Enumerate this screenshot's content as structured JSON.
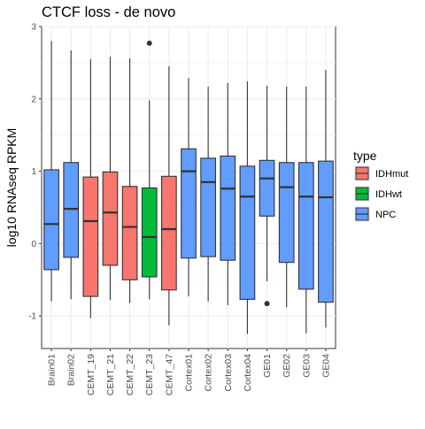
{
  "chart_data": {
    "type": "boxplot",
    "title": "CTCF loss - de novo",
    "xlabel": "",
    "ylabel": "log10 RNAseq RPKM",
    "ylim": [
      -1.45,
      3.0
    ],
    "yticks": [
      -1,
      0,
      1,
      2,
      3
    ],
    "grid": true,
    "legend": {
      "title": "type",
      "position": "right",
      "entries": [
        {
          "name": "IDHmut",
          "color": "#F8766D"
        },
        {
          "name": "IDHwt",
          "color": "#00BA38"
        },
        {
          "name": "NPC",
          "color": "#619CFF"
        }
      ]
    },
    "categories": [
      "Brain01",
      "Brain02",
      "CEMT_19",
      "CEMT_21",
      "CEMT_22",
      "CEMT_23",
      "CEMT_47",
      "Cortex01",
      "Cortex02",
      "Cortex03",
      "Cortex04",
      "GE01",
      "GE02",
      "GE03",
      "GE04"
    ],
    "boxes": [
      {
        "category": "Brain01",
        "type": "NPC",
        "whisker_low": -0.8,
        "q1": -0.36,
        "median": 0.27,
        "q3": 1.02,
        "whisker_high": 2.8,
        "outliers": []
      },
      {
        "category": "Brain02",
        "type": "NPC",
        "whisker_low": -0.77,
        "q1": -0.19,
        "median": 0.48,
        "q3": 1.12,
        "whisker_high": 2.67,
        "outliers": []
      },
      {
        "category": "CEMT_19",
        "type": "IDHmut",
        "whisker_low": -1.03,
        "q1": -0.73,
        "median": 0.31,
        "q3": 0.92,
        "whisker_high": 2.55,
        "outliers": []
      },
      {
        "category": "CEMT_21",
        "type": "IDHmut",
        "whisker_low": -0.78,
        "q1": -0.3,
        "median": 0.43,
        "q3": 0.99,
        "whisker_high": 2.58,
        "outliers": []
      },
      {
        "category": "CEMT_22",
        "type": "IDHmut",
        "whisker_low": -0.82,
        "q1": -0.5,
        "median": 0.23,
        "q3": 0.79,
        "whisker_high": 2.56,
        "outliers": []
      },
      {
        "category": "CEMT_23",
        "type": "IDHwt",
        "whisker_low": -0.77,
        "q1": -0.46,
        "median": 0.09,
        "q3": 0.77,
        "whisker_high": 1.98,
        "outliers": [
          2.77
        ]
      },
      {
        "category": "CEMT_47",
        "type": "IDHmut",
        "whisker_low": -1.13,
        "q1": -0.64,
        "median": 0.2,
        "q3": 0.93,
        "whisker_high": 2.45,
        "outliers": []
      },
      {
        "category": "Cortex01",
        "type": "NPC",
        "whisker_low": -0.73,
        "q1": -0.2,
        "median": 1.0,
        "q3": 1.31,
        "whisker_high": 2.29,
        "outliers": []
      },
      {
        "category": "Cortex02",
        "type": "NPC",
        "whisker_low": -0.8,
        "q1": -0.18,
        "median": 0.85,
        "q3": 1.18,
        "whisker_high": 2.17,
        "outliers": []
      },
      {
        "category": "Cortex03",
        "type": "NPC",
        "whisker_low": -0.85,
        "q1": -0.23,
        "median": 0.76,
        "q3": 1.21,
        "whisker_high": 2.22,
        "outliers": []
      },
      {
        "category": "Cortex04",
        "type": "NPC",
        "whisker_low": -1.25,
        "q1": -0.77,
        "median": 0.65,
        "q3": 1.07,
        "whisker_high": 2.24,
        "outliers": []
      },
      {
        "category": "GE01",
        "type": "NPC",
        "whisker_low": -0.52,
        "q1": 0.38,
        "median": 0.9,
        "q3": 1.15,
        "whisker_high": 2.18,
        "outliers": [
          -0.83
        ]
      },
      {
        "category": "GE02",
        "type": "NPC",
        "whisker_low": -0.88,
        "q1": -0.26,
        "median": 0.78,
        "q3": 1.12,
        "whisker_high": 2.17,
        "outliers": []
      },
      {
        "category": "GE03",
        "type": "NPC",
        "whisker_low": -1.24,
        "q1": -0.63,
        "median": 0.65,
        "q3": 1.12,
        "whisker_high": 2.17,
        "outliers": []
      },
      {
        "category": "GE04",
        "type": "NPC",
        "whisker_low": -1.16,
        "q1": -0.81,
        "median": 0.64,
        "q3": 1.14,
        "whisker_high": 2.4,
        "outliers": []
      }
    ]
  }
}
